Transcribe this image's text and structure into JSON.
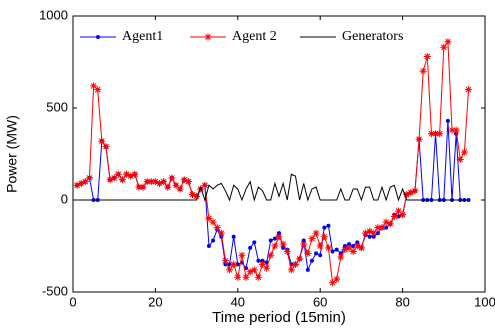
{
  "chart_data": {
    "type": "line",
    "xlabel": "Time period (15min)",
    "ylabel": "Power (MW)",
    "x": [
      1,
      2,
      3,
      4,
      5,
      6,
      7,
      8,
      9,
      10,
      11,
      12,
      13,
      14,
      15,
      16,
      17,
      18,
      19,
      20,
      21,
      22,
      23,
      24,
      25,
      26,
      27,
      28,
      29,
      30,
      31,
      32,
      33,
      34,
      35,
      36,
      37,
      38,
      39,
      40,
      41,
      42,
      43,
      44,
      45,
      46,
      47,
      48,
      49,
      50,
      51,
      52,
      53,
      54,
      55,
      56,
      57,
      58,
      59,
      60,
      61,
      62,
      63,
      64,
      65,
      66,
      67,
      68,
      69,
      70,
      71,
      72,
      73,
      74,
      75,
      76,
      77,
      78,
      79,
      80,
      81,
      82,
      83,
      84,
      85,
      86,
      87,
      88,
      89,
      90,
      91,
      92,
      93,
      94,
      95,
      96
    ],
    "series": [
      {
        "name": "Agent1",
        "color": "#0000ff",
        "marker": "dot",
        "values": [
          80,
          90,
          100,
          120,
          0,
          0,
          320,
          290,
          110,
          120,
          140,
          110,
          140,
          130,
          140,
          70,
          70,
          100,
          100,
          100,
          90,
          100,
          70,
          120,
          80,
          60,
          110,
          100,
          30,
          20,
          60,
          80,
          -250,
          -220,
          -160,
          -200,
          -350,
          -350,
          -200,
          -350,
          -340,
          -370,
          -260,
          -230,
          -330,
          -330,
          -340,
          -220,
          -210,
          -180,
          -260,
          -270,
          -350,
          -350,
          -320,
          -220,
          -380,
          -330,
          -290,
          -300,
          -150,
          -140,
          -280,
          -270,
          -290,
          -250,
          -240,
          -250,
          -230,
          -260,
          -190,
          -200,
          -200,
          -180,
          -150,
          -150,
          -130,
          -80,
          -90,
          -80,
          30,
          40,
          50,
          330,
          0,
          0,
          0,
          360,
          0,
          0,
          430,
          0,
          360,
          0,
          0,
          0
        ]
      },
      {
        "name": "Agent 2",
        "color": "#ff0000",
        "marker": "star",
        "values": [
          80,
          90,
          100,
          120,
          620,
          600,
          320,
          290,
          110,
          120,
          140,
          110,
          140,
          130,
          140,
          70,
          70,
          100,
          100,
          100,
          90,
          100,
          70,
          120,
          80,
          60,
          110,
          100,
          30,
          20,
          60,
          80,
          -100,
          -120,
          -150,
          -180,
          -330,
          -380,
          -350,
          -420,
          -300,
          -420,
          -390,
          -380,
          -420,
          -350,
          -370,
          -300,
          -250,
          -200,
          -240,
          -280,
          -380,
          -350,
          -320,
          -240,
          -290,
          -210,
          -180,
          -250,
          -200,
          -260,
          -450,
          -430,
          -310,
          -270,
          -260,
          -280,
          -250,
          -260,
          -180,
          -170,
          -180,
          -150,
          -150,
          -120,
          -130,
          -90,
          -60,
          -80,
          30,
          40,
          50,
          330,
          700,
          780,
          360,
          360,
          360,
          830,
          860,
          380,
          380,
          220,
          260,
          600
        ]
      },
      {
        "name": "Generators",
        "color": "#000000",
        "marker": "none",
        "values": [
          0,
          0,
          0,
          0,
          0,
          0,
          0,
          0,
          0,
          0,
          0,
          0,
          0,
          0,
          0,
          0,
          0,
          0,
          0,
          0,
          0,
          0,
          0,
          0,
          0,
          0,
          0,
          0,
          0,
          0,
          70,
          0,
          80,
          60,
          80,
          90,
          50,
          0,
          80,
          60,
          0,
          60,
          100,
          0,
          70,
          50,
          0,
          0,
          90,
          20,
          90,
          0,
          140,
          130,
          0,
          90,
          0,
          60,
          70,
          0,
          0,
          0,
          0,
          0,
          60,
          0,
          0,
          60,
          60,
          0,
          70,
          70,
          0,
          0,
          70,
          0,
          70,
          80,
          0,
          60,
          0,
          0,
          0,
          0,
          0,
          0,
          0,
          0,
          0,
          0,
          0,
          0,
          0,
          0,
          0,
          0
        ]
      }
    ],
    "xlim": [
      0,
      100
    ],
    "xticks": [
      0,
      20,
      40,
      60,
      80,
      100
    ],
    "ylim": [
      -500,
      1000
    ],
    "yticks": [
      -500,
      0,
      500,
      1000
    ],
    "grid": false,
    "legend": "top"
  }
}
